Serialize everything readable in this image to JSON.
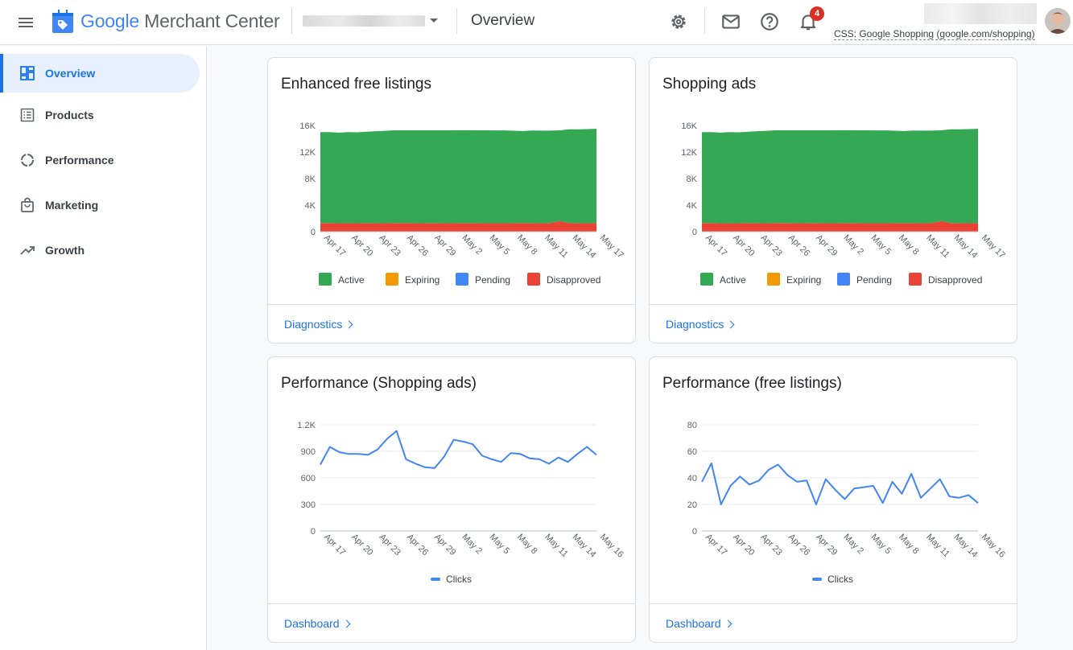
{
  "header": {
    "brand_google": "Google",
    "brand_product": " Merchant Center",
    "page_title": "Overview",
    "notification_count": "4",
    "css_label": "CSS: Google Shopping (google.com/shopping)"
  },
  "sidebar": {
    "items": [
      {
        "label": "Overview",
        "icon": "dashboard-icon",
        "active": true
      },
      {
        "label": "Products",
        "icon": "list-icon",
        "active": false
      },
      {
        "label": "Performance",
        "icon": "donut-icon",
        "active": false
      },
      {
        "label": "Marketing",
        "icon": "shopping-bag-icon",
        "active": false
      },
      {
        "label": "Growth",
        "icon": "trending-up-icon",
        "active": false
      }
    ]
  },
  "colors": {
    "active": "#34a853",
    "expiring": "#f29900",
    "pending": "#4285f4",
    "disapproved": "#ea4335",
    "clicks": "#4285f4",
    "accent": "#1a73e8"
  },
  "cards": [
    {
      "title": "Enhanced free listings",
      "link": "Diagnostics"
    },
    {
      "title": "Shopping ads",
      "link": "Diagnostics"
    },
    {
      "title": "Performance (Shopping ads)",
      "link": "Dashboard"
    },
    {
      "title": "Performance (free listings)",
      "link": "Dashboard"
    }
  ],
  "chart_data": [
    {
      "type": "area",
      "title": "Enhanced free listings",
      "x_ticks": [
        "Apr 17",
        "Apr 20",
        "Apr 23",
        "Apr 26",
        "Apr 29",
        "May 2",
        "May 5",
        "May 8",
        "May 11",
        "May 14",
        "May 17"
      ],
      "y_ticks": [
        "0",
        "4K",
        "8K",
        "12K",
        "16K"
      ],
      "ylim": [
        0,
        16000
      ],
      "legend": [
        "Active",
        "Expiring",
        "Pending",
        "Disapproved"
      ],
      "series": [
        {
          "name": "Disapproved",
          "values": [
            1300,
            1300,
            1280,
            1260,
            1270,
            1300,
            1290,
            1280,
            1310,
            1300,
            1290,
            1280,
            1300,
            1290,
            1280,
            1290,
            1300,
            1290,
            1280,
            1270,
            1280,
            1290,
            1300,
            1290,
            1280,
            1300,
            1600,
            1300,
            1290,
            1280,
            1300
          ]
        },
        {
          "name": "Expiring",
          "values": [
            0,
            0,
            0,
            0,
            0,
            0,
            0,
            0,
            0,
            0,
            0,
            0,
            0,
            0,
            0,
            0,
            0,
            0,
            0,
            0,
            0,
            0,
            0,
            0,
            0,
            0,
            0,
            0,
            0,
            0,
            0
          ]
        },
        {
          "name": "Pending",
          "values": [
            0,
            0,
            0,
            0,
            0,
            0,
            0,
            0,
            0,
            0,
            0,
            0,
            0,
            0,
            0,
            0,
            0,
            0,
            0,
            0,
            0,
            0,
            0,
            0,
            0,
            0,
            0,
            0,
            0,
            0,
            0
          ]
        },
        {
          "name": "Active",
          "values": [
            13700,
            13700,
            13650,
            13740,
            13700,
            13760,
            13840,
            13920,
            13970,
            13980,
            13990,
            14000,
            13980,
            13990,
            14000,
            14000,
            13990,
            13980,
            13990,
            13990,
            13980,
            13920,
            13860,
            13960,
            13950,
            13920,
            13680,
            14120,
            14140,
            14180,
            14220
          ]
        }
      ]
    },
    {
      "type": "area",
      "title": "Shopping ads",
      "x_ticks": [
        "Apr 17",
        "Apr 20",
        "Apr 23",
        "Apr 26",
        "Apr 29",
        "May 2",
        "May 5",
        "May 8",
        "May 11",
        "May 14",
        "May 17"
      ],
      "y_ticks": [
        "0",
        "4K",
        "8K",
        "12K",
        "16K"
      ],
      "ylim": [
        0,
        16000
      ],
      "legend": [
        "Active",
        "Expiring",
        "Pending",
        "Disapproved"
      ],
      "series": [
        {
          "name": "Disapproved",
          "values": [
            1300,
            1300,
            1280,
            1260,
            1270,
            1300,
            1290,
            1280,
            1310,
            1300,
            1290,
            1280,
            1300,
            1290,
            1280,
            1290,
            1300,
            1290,
            1280,
            1270,
            1280,
            1290,
            1300,
            1290,
            1280,
            1300,
            1600,
            1300,
            1290,
            1280,
            1300
          ]
        },
        {
          "name": "Expiring",
          "values": [
            0,
            0,
            0,
            0,
            0,
            0,
            0,
            0,
            0,
            0,
            0,
            0,
            0,
            0,
            0,
            0,
            0,
            0,
            0,
            0,
            0,
            0,
            0,
            0,
            0,
            0,
            0,
            0,
            0,
            0,
            0
          ]
        },
        {
          "name": "Pending",
          "values": [
            0,
            0,
            0,
            0,
            0,
            0,
            0,
            0,
            0,
            0,
            0,
            0,
            0,
            0,
            0,
            0,
            0,
            0,
            0,
            0,
            0,
            0,
            0,
            0,
            0,
            0,
            0,
            0,
            0,
            0,
            0
          ]
        },
        {
          "name": "Active",
          "values": [
            13700,
            13700,
            13650,
            13740,
            13700,
            13760,
            13840,
            13920,
            13970,
            13980,
            13990,
            14000,
            13980,
            13990,
            14000,
            14000,
            13990,
            13980,
            13990,
            13990,
            13980,
            13920,
            13860,
            13960,
            13950,
            13920,
            13680,
            14120,
            14140,
            14180,
            14220
          ]
        }
      ]
    },
    {
      "type": "line",
      "title": "Performance (Shopping ads)",
      "x_ticks": [
        "Apr 17",
        "Apr 20",
        "Apr 23",
        "Apr 26",
        "Apr 29",
        "May 2",
        "May 5",
        "May 8",
        "May 11",
        "May 14",
        "May 16"
      ],
      "y_ticks": [
        "0",
        "300",
        "600",
        "900",
        "1.2K"
      ],
      "ylim": [
        0,
        1200
      ],
      "legend": [
        "Clicks"
      ],
      "series": [
        {
          "name": "Clicks",
          "values": [
            750,
            950,
            890,
            870,
            870,
            860,
            920,
            1040,
            1130,
            810,
            760,
            720,
            710,
            840,
            1030,
            1010,
            980,
            850,
            810,
            780,
            880,
            870,
            820,
            810,
            760,
            830,
            780,
            870,
            950,
            860
          ]
        }
      ]
    },
    {
      "type": "line",
      "title": "Performance (free listings)",
      "x_ticks": [
        "Apr 17",
        "Apr 20",
        "Apr 23",
        "Apr 26",
        "Apr 29",
        "May 2",
        "May 5",
        "May 8",
        "May 11",
        "May 14",
        "May 16"
      ],
      "y_ticks": [
        "0",
        "20",
        "40",
        "60",
        "80"
      ],
      "ylim": [
        0,
        80
      ],
      "legend": [
        "Clicks"
      ],
      "series": [
        {
          "name": "Clicks",
          "values": [
            37,
            51,
            20,
            34,
            41,
            35,
            38,
            46,
            50,
            42,
            37,
            38,
            20,
            39,
            31,
            24,
            32,
            33,
            34,
            21,
            37,
            28,
            43,
            25,
            32,
            39,
            26,
            25,
            27,
            21
          ]
        }
      ]
    }
  ]
}
